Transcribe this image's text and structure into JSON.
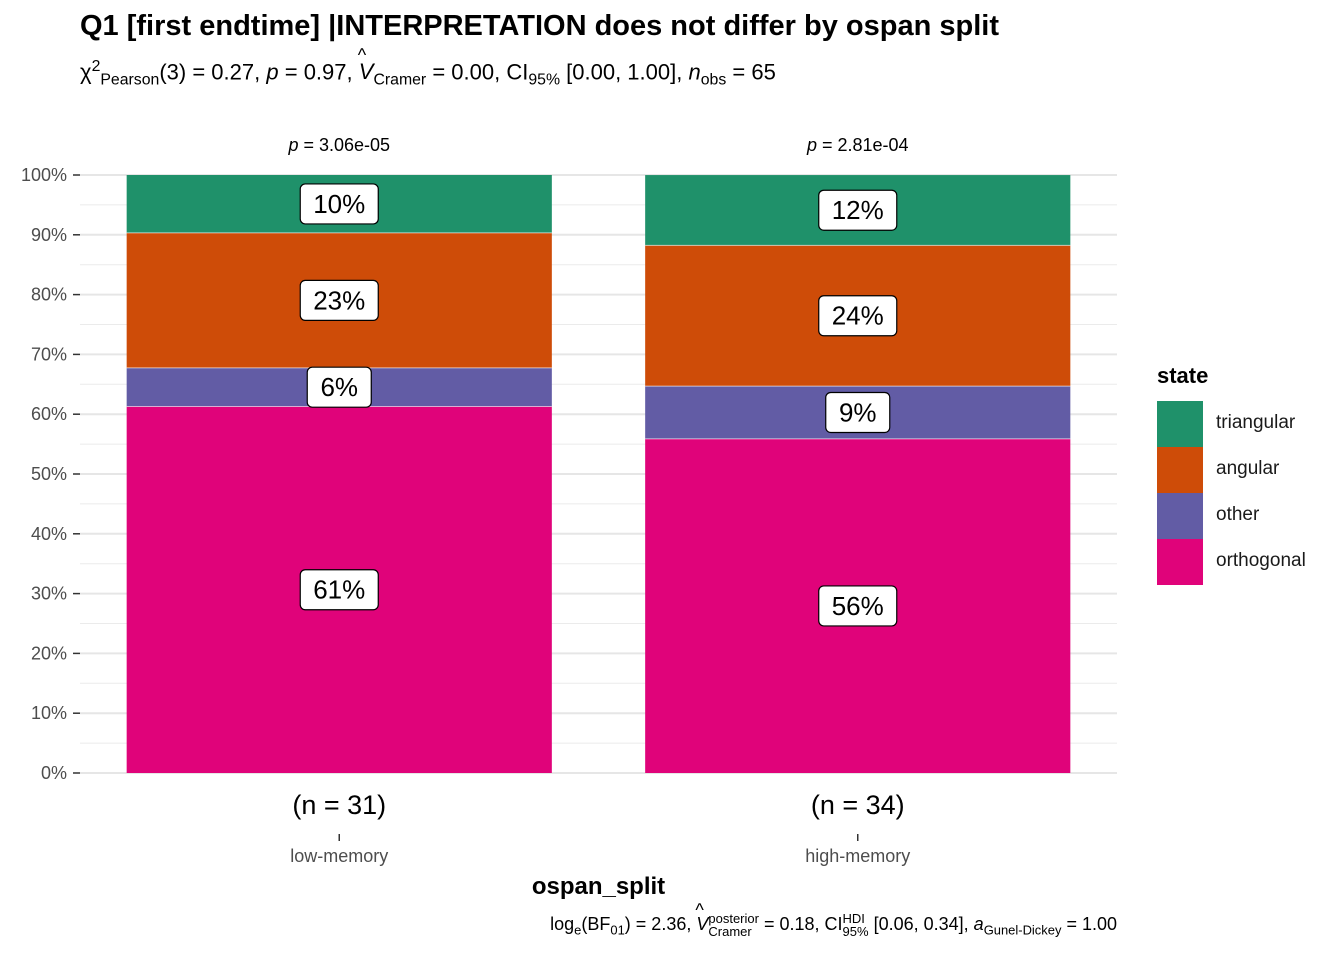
{
  "title": "Q1 [first endtime] |INTERPRETATION does not differ by ospan split",
  "subtitle": {
    "chi_symbol": "χ",
    "chi_sup": "2",
    "chi_sub": "Pearson",
    "df": "(3) = 0.27,",
    "p_label": "p",
    "p_value": "= 0.97,",
    "v_label": "V",
    "v_sub": "Cramer",
    "v_value": "= 0.00, CI",
    "ci_sub": "95%",
    "ci_value": "[0.00, 1.00],",
    "n_label": "n",
    "n_sub": "obs",
    "n_value": "= 65"
  },
  "caption": {
    "log": "log",
    "log_sub": "e",
    "bf": "(BF",
    "bf_sub": "01",
    "bf_value": ") = 2.36,",
    "v_label": "V",
    "v_sup": "posterior",
    "v_sub": "Cramer",
    "v_value": "= 0.18, CI",
    "ci_sup": "HDI",
    "ci_sub": "95%",
    "ci_value": "[0.06, 0.34],",
    "a_label": "a",
    "a_sub": "Gunel-Dickey",
    "a_value": "= 1.00"
  },
  "legend": {
    "title": "state",
    "items": [
      {
        "label": "triangular",
        "color": "#1B9E77"
      },
      {
        "label": "angular",
        "color": "#D95F02"
      },
      {
        "label": "other",
        "color": "#7570B3"
      },
      {
        "label": "orthogonal",
        "color": "#E7298A"
      }
    ]
  },
  "chart_data": {
    "type": "bar",
    "stacked": true,
    "percent": true,
    "xlabel": "ospan_split",
    "ylabel": "",
    "ylim": [
      0,
      100
    ],
    "yticks": [
      "0%",
      "10%",
      "20%",
      "30%",
      "40%",
      "50%",
      "60%",
      "70%",
      "80%",
      "90%",
      "100%"
    ],
    "categories": [
      "low-memory",
      "high-memory"
    ],
    "n_labels": [
      "(n = 31)",
      "(n = 34)"
    ],
    "p_labels": [
      {
        "p": "p",
        "value": "= 3.06e-05"
      },
      {
        "p": "p",
        "value": "= 2.81e-04"
      }
    ],
    "series": [
      {
        "name": "orthogonal",
        "color": "#E0037A",
        "values": [
          61.29,
          55.88
        ],
        "labels": [
          "61%",
          "56%"
        ]
      },
      {
        "name": "other",
        "color": "#625CA5",
        "values": [
          6.45,
          8.82
        ],
        "labels": [
          "6%",
          "9%"
        ]
      },
      {
        "name": "angular",
        "color": "#CE4C08",
        "values": [
          22.58,
          23.53
        ],
        "labels": [
          "23%",
          "24%"
        ]
      },
      {
        "name": "triangular",
        "color": "#1F916A",
        "values": [
          9.68,
          11.76
        ],
        "labels": [
          "10%",
          "12%"
        ]
      }
    ],
    "grid": true
  }
}
